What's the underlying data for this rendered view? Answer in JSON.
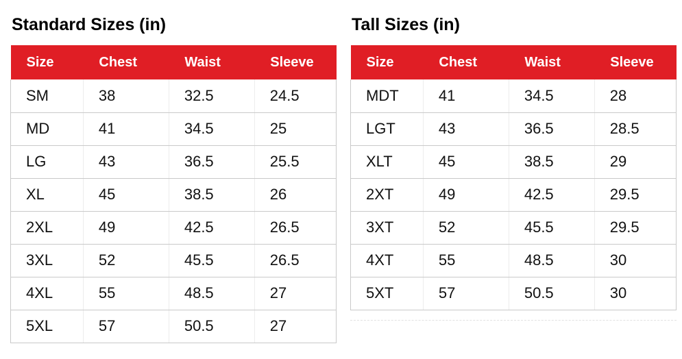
{
  "theme": {
    "page_bg": "#ffffff",
    "header_bg": "#e01e25",
    "header_text": "#ffffff",
    "body_text": "#111111",
    "row_border": "#c9c9c9",
    "col_border": "#ececec"
  },
  "chart_data": [
    {
      "type": "table",
      "title": "Standard Sizes (in)",
      "columns": [
        "Size",
        "Chest",
        "Waist",
        "Sleeve"
      ],
      "rows": [
        [
          "SM",
          "38",
          "32.5",
          "24.5"
        ],
        [
          "MD",
          "41",
          "34.5",
          "25"
        ],
        [
          "LG",
          "43",
          "36.5",
          "25.5"
        ],
        [
          "XL",
          "45",
          "38.5",
          "26"
        ],
        [
          "2XL",
          "49",
          "42.5",
          "26.5"
        ],
        [
          "3XL",
          "52",
          "45.5",
          "26.5"
        ],
        [
          "4XL",
          "55",
          "48.5",
          "27"
        ],
        [
          "5XL",
          "57",
          "50.5",
          "27"
        ]
      ]
    },
    {
      "type": "table",
      "title": "Tall Sizes (in)",
      "columns": [
        "Size",
        "Chest",
        "Waist",
        "Sleeve"
      ],
      "rows": [
        [
          "MDT",
          "41",
          "34.5",
          "28"
        ],
        [
          "LGT",
          "43",
          "36.5",
          "28.5"
        ],
        [
          "XLT",
          "45",
          "38.5",
          "29"
        ],
        [
          "2XT",
          "49",
          "42.5",
          "29.5"
        ],
        [
          "3XT",
          "52",
          "45.5",
          "29.5"
        ],
        [
          "4XT",
          "55",
          "48.5",
          "30"
        ],
        [
          "5XT",
          "57",
          "50.5",
          "30"
        ]
      ]
    }
  ]
}
